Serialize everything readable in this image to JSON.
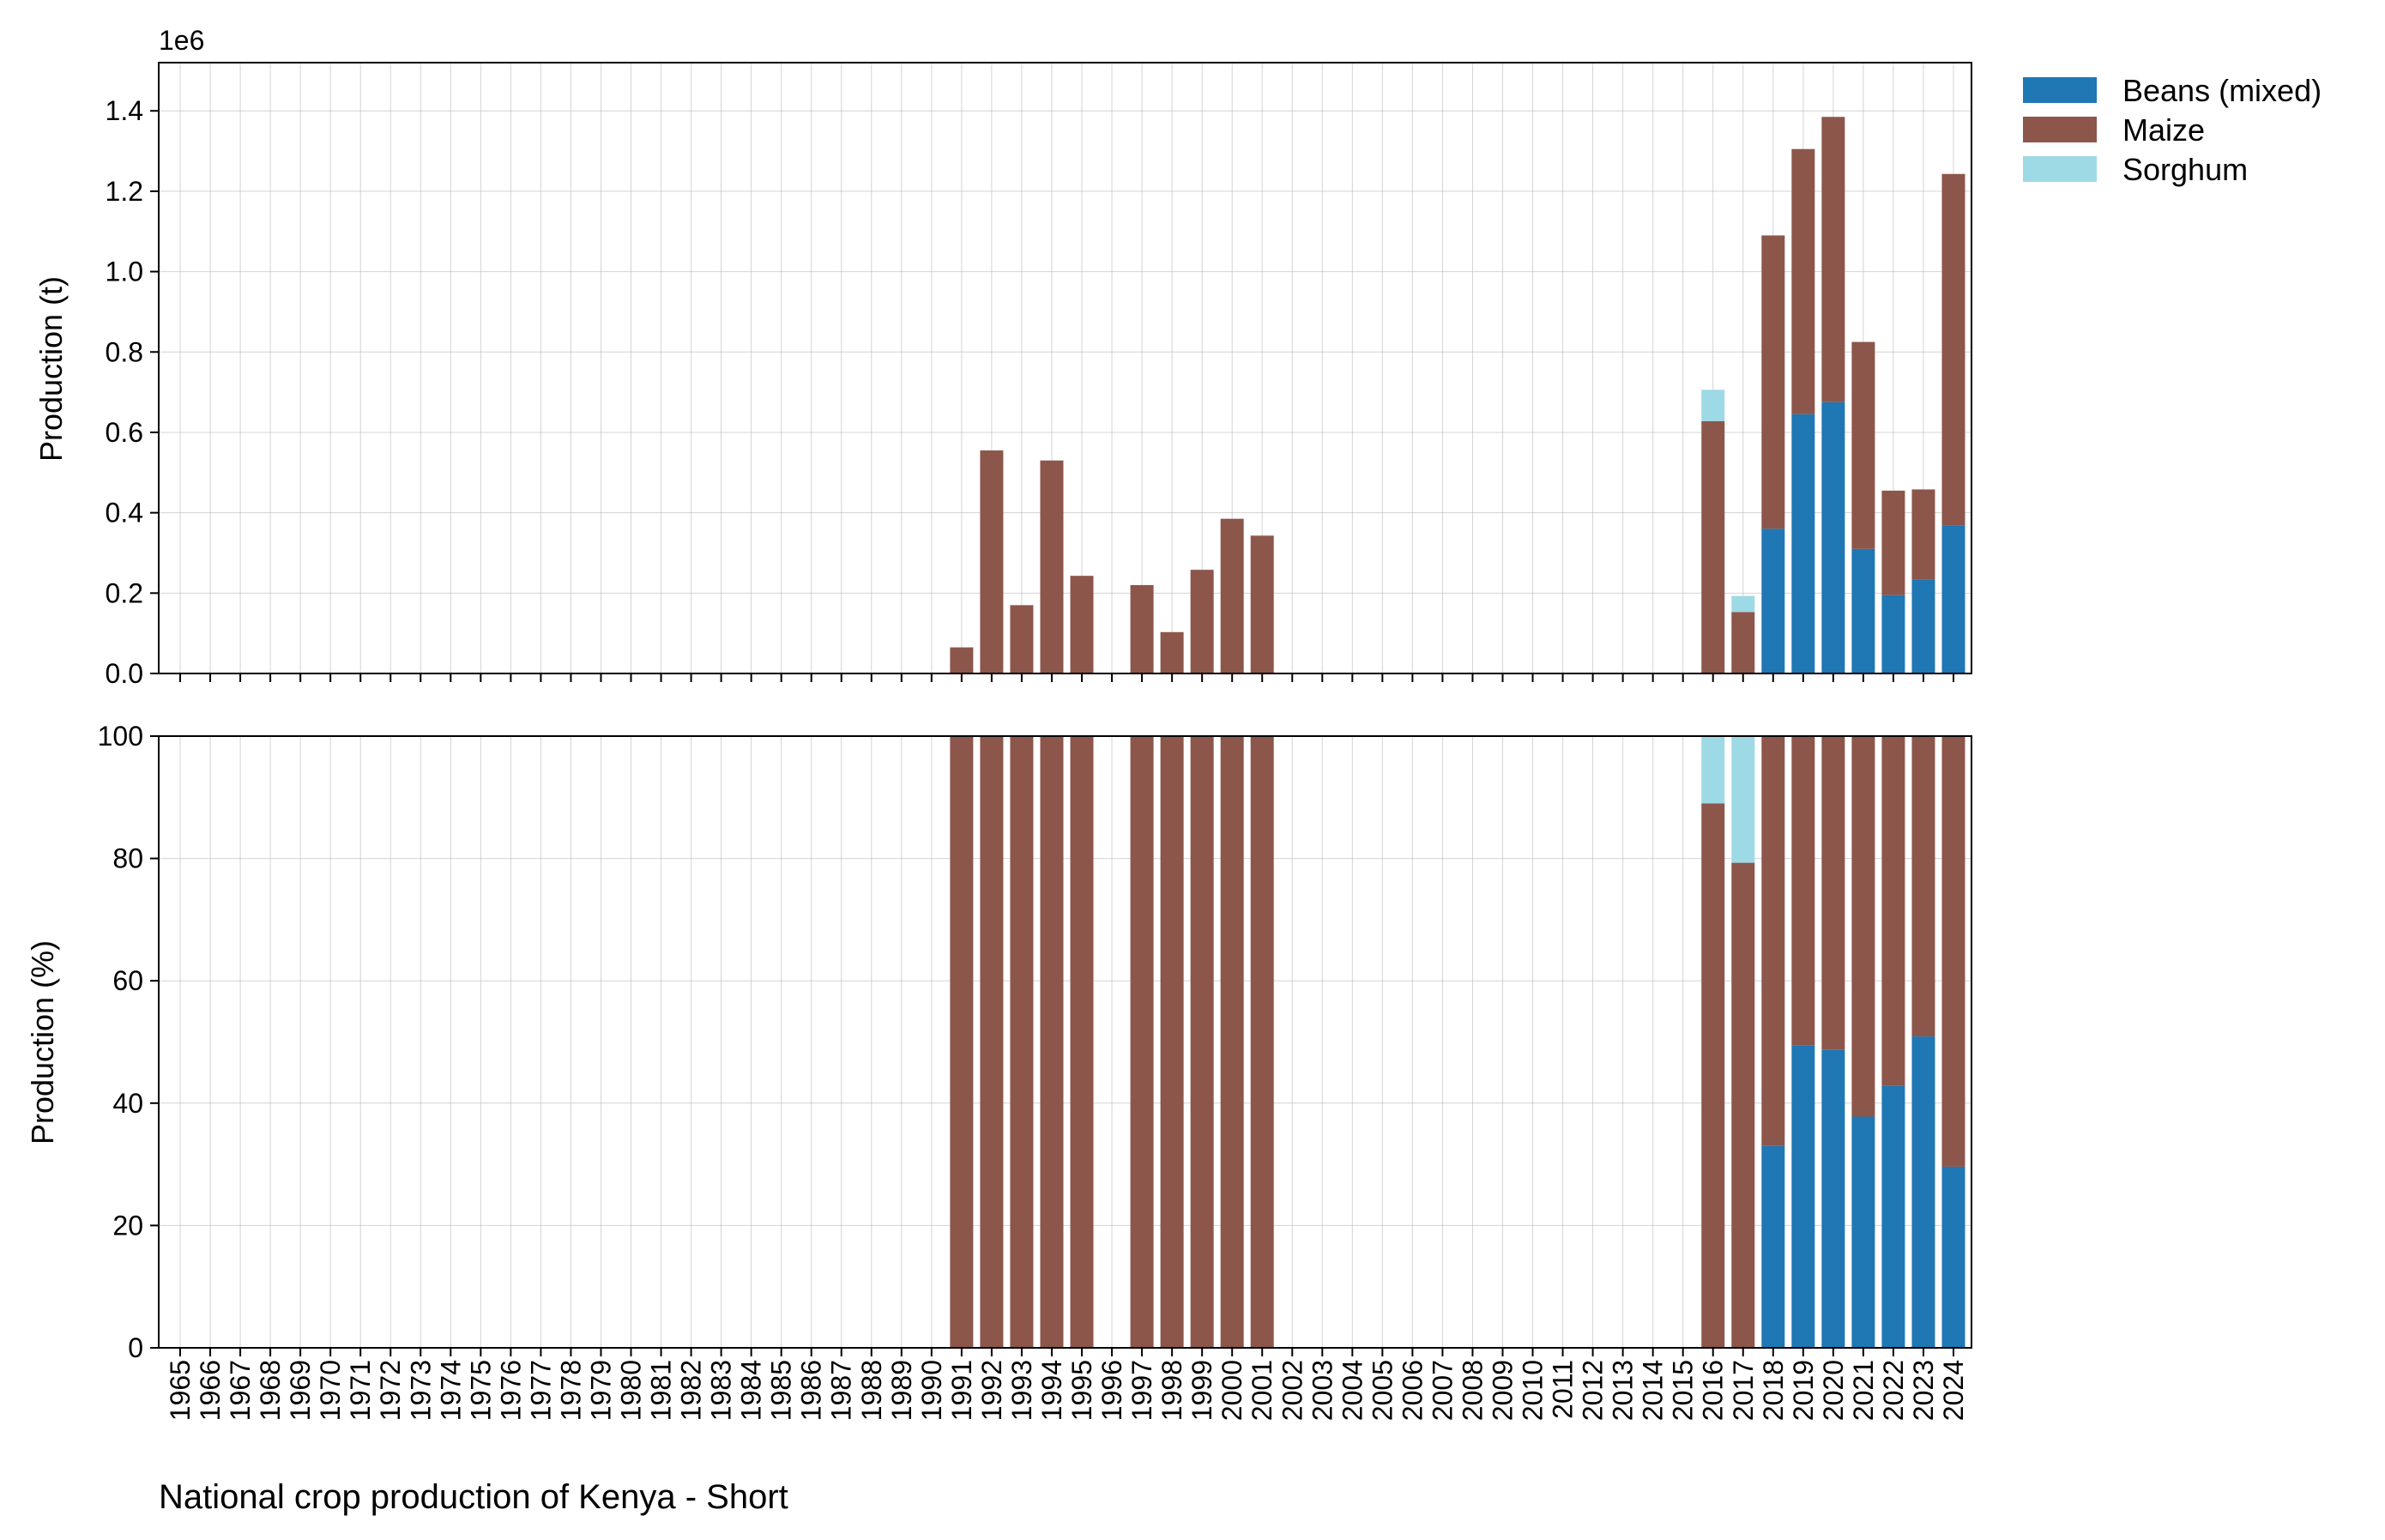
{
  "chart_data": {
    "type": "bar",
    "title": "National crop production of Kenya - Short",
    "categories": [
      "1965",
      "1966",
      "1967",
      "1968",
      "1969",
      "1970",
      "1971",
      "1972",
      "1973",
      "1974",
      "1975",
      "1976",
      "1977",
      "1978",
      "1979",
      "1980",
      "1981",
      "1982",
      "1983",
      "1984",
      "1985",
      "1986",
      "1987",
      "1988",
      "1989",
      "1990",
      "1991",
      "1992",
      "1993",
      "1994",
      "1995",
      "1996",
      "1997",
      "1998",
      "1999",
      "2000",
      "2001",
      "2002",
      "2003",
      "2004",
      "2005",
      "2006",
      "2007",
      "2008",
      "2009",
      "2010",
      "2011",
      "2012",
      "2013",
      "2014",
      "2015",
      "2016",
      "2017",
      "2018",
      "2019",
      "2020",
      "2021",
      "2022",
      "2023",
      "2024"
    ],
    "stacked": true,
    "legend_position": "top-right outside",
    "series_colors": {
      "Beans (mixed)": "#1f77b4",
      "Maize": "#8c564b",
      "Sorghum": "#9edae5"
    },
    "panels": [
      {
        "id": "absolute",
        "ylabel": "Production (t)",
        "y_scale_label": "1e6",
        "ylim": [
          0,
          1.52
        ],
        "yticks": [
          "0.0",
          "0.2",
          "0.4",
          "0.6",
          "0.8",
          "1.0",
          "1.2",
          "1.4"
        ],
        "ytick_values": [
          0,
          0.2,
          0.4,
          0.6,
          0.8,
          1.0,
          1.2,
          1.4
        ],
        "series": [
          {
            "name": "Beans (mixed)",
            "values": [
              0,
              0,
              0,
              0,
              0,
              0,
              0,
              0,
              0,
              0,
              0,
              0,
              0,
              0,
              0,
              0,
              0,
              0,
              0,
              0,
              0,
              0,
              0,
              0,
              0,
              0,
              0,
              0,
              0,
              0,
              0,
              0,
              0,
              0,
              0,
              0,
              0,
              0,
              0,
              0,
              0,
              0,
              0,
              0,
              0,
              0,
              0,
              0,
              0,
              0,
              0,
              0,
              0,
              0.36,
              0.645,
              0.675,
              0.31,
              0.195,
              0.233,
              0.368
            ]
          },
          {
            "name": "Maize",
            "values": [
              0,
              0,
              0,
              0,
              0,
              0,
              0,
              0,
              0,
              0,
              0,
              0,
              0,
              0,
              0,
              0,
              0,
              0,
              0,
              0,
              0,
              0,
              0,
              0,
              0,
              0,
              0.065,
              0.555,
              0.17,
              0.53,
              0.243,
              0,
              0.22,
              0.103,
              0.258,
              0.385,
              0.343,
              0,
              0,
              0,
              0,
              0,
              0,
              0,
              0,
              0,
              0,
              0,
              0,
              0,
              0,
              0.628,
              0.153,
              0.73,
              0.66,
              0.71,
              0.515,
              0.26,
              0.225,
              0.875
            ]
          },
          {
            "name": "Sorghum",
            "values": [
              0,
              0,
              0,
              0,
              0,
              0,
              0,
              0,
              0,
              0,
              0,
              0,
              0,
              0,
              0,
              0,
              0,
              0,
              0,
              0,
              0,
              0,
              0,
              0,
              0,
              0,
              0,
              0,
              0,
              0,
              0,
              0,
              0,
              0,
              0,
              0,
              0,
              0,
              0,
              0,
              0,
              0,
              0,
              0,
              0,
              0,
              0,
              0,
              0,
              0,
              0,
              0.078,
              0.04,
              0,
              0,
              0,
              0,
              0,
              0,
              0
            ]
          }
        ]
      },
      {
        "id": "percent",
        "ylabel": "Production (%)",
        "ylim": [
          0,
          100
        ],
        "yticks": [
          "0",
          "20",
          "40",
          "60",
          "80",
          "100"
        ],
        "ytick_values": [
          0,
          20,
          40,
          60,
          80,
          100
        ],
        "series": [
          {
            "name": "Beans (mixed)",
            "values": [
              0,
              0,
              0,
              0,
              0,
              0,
              0,
              0,
              0,
              0,
              0,
              0,
              0,
              0,
              0,
              0,
              0,
              0,
              0,
              0,
              0,
              0,
              0,
              0,
              0,
              0,
              0,
              0,
              0,
              0,
              0,
              0,
              0,
              0,
              0,
              0,
              0,
              0,
              0,
              0,
              0,
              0,
              0,
              0,
              0,
              0,
              0,
              0,
              0,
              0,
              0,
              0,
              0,
              33,
              49.4,
              48.7,
              37.8,
              42.8,
              50.9,
              29.6
            ]
          },
          {
            "name": "Maize",
            "values": [
              0,
              0,
              0,
              0,
              0,
              0,
              0,
              0,
              0,
              0,
              0,
              0,
              0,
              0,
              0,
              0,
              0,
              0,
              0,
              0,
              0,
              0,
              0,
              0,
              0,
              0,
              100,
              100,
              100,
              100,
              100,
              0,
              100,
              100,
              100,
              100,
              100,
              0,
              0,
              0,
              0,
              0,
              0,
              0,
              0,
              0,
              0,
              0,
              0,
              0,
              0,
              89,
              79.3,
              67,
              50.6,
              51.3,
              62.2,
              57.2,
              49.1,
              70.4
            ]
          },
          {
            "name": "Sorghum",
            "values": [
              0,
              0,
              0,
              0,
              0,
              0,
              0,
              0,
              0,
              0,
              0,
              0,
              0,
              0,
              0,
              0,
              0,
              0,
              0,
              0,
              0,
              0,
              0,
              0,
              0,
              0,
              0,
              0,
              0,
              0,
              0,
              0,
              0,
              0,
              0,
              0,
              0,
              0,
              0,
              0,
              0,
              0,
              0,
              0,
              0,
              0,
              0,
              0,
              0,
              0,
              0,
              11,
              20.7,
              0,
              0,
              0,
              0,
              0,
              0,
              0
            ]
          }
        ]
      }
    ]
  }
}
